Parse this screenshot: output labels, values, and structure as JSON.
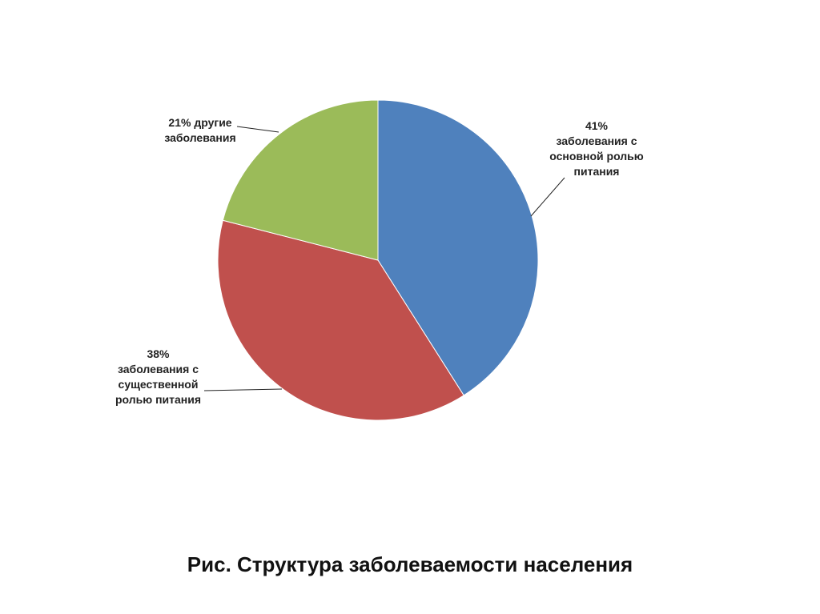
{
  "chart_data": {
    "type": "pie",
    "title": "Рис. Структура заболеваемости населения",
    "categories": [
      "заболевания с основной ролью питания",
      "заболевания с существенной ролью питания",
      "другие заболевания"
    ],
    "values": [
      41,
      38,
      21
    ],
    "value_labels": [
      "41%",
      "38%",
      "21%"
    ],
    "colors": [
      "#4f81bd",
      "#c0504d",
      "#9bbb59"
    ]
  }
}
